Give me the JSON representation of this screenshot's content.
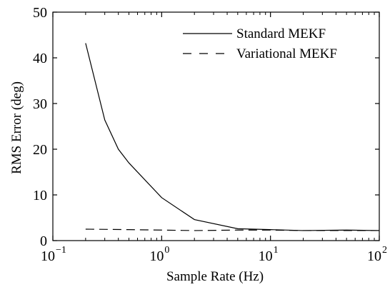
{
  "chart_data": {
    "type": "line",
    "title": "",
    "xlabel": "Sample Rate (Hz)",
    "ylabel": "RMS Error (deg)",
    "x_scale": "log",
    "xlim": [
      0.1,
      100
    ],
    "ylim": [
      0,
      50
    ],
    "x_ticks": [
      {
        "value": 0.1,
        "base": "10",
        "exp": "−1"
      },
      {
        "value": 1,
        "base": "10",
        "exp": "0"
      },
      {
        "value": 10,
        "base": "10",
        "exp": "1"
      },
      {
        "value": 100,
        "base": "10",
        "exp": "2"
      }
    ],
    "y_ticks": [
      "0",
      "10",
      "20",
      "30",
      "40",
      "50"
    ],
    "grid": false,
    "legend_position": "top-right",
    "series": [
      {
        "name": "Standard MEKF",
        "style": "solid",
        "color": "#000000",
        "x": [
          0.2,
          0.3,
          0.4,
          0.5,
          1,
          2,
          5,
          10,
          20,
          50,
          100
        ],
        "y": [
          43.2,
          26.4,
          20.0,
          17.0,
          9.4,
          4.6,
          2.6,
          2.4,
          2.2,
          2.3,
          2.2
        ]
      },
      {
        "name": "Variational MEKF",
        "style": "dashed",
        "color": "#000000",
        "x": [
          0.2,
          0.5,
          1,
          2,
          5,
          10,
          20,
          50,
          100
        ],
        "y": [
          2.5,
          2.4,
          2.3,
          2.2,
          2.3,
          2.3,
          2.2,
          2.2,
          2.2
        ]
      }
    ]
  }
}
